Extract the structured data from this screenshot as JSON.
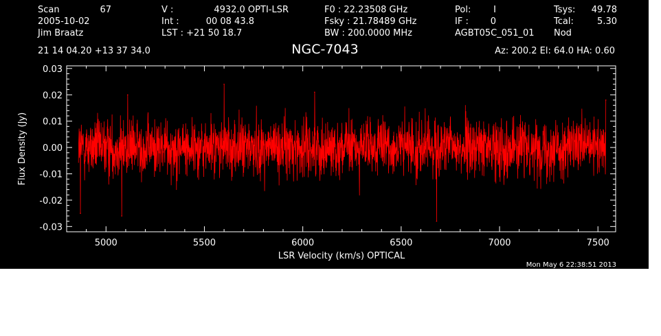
{
  "header": {
    "col1": [
      "Scan",
      "2005-10-02",
      "Jim Braatz"
    ],
    "scan_number": "67",
    "col2": [
      "V   :",
      "Int  :",
      "LST : +21 50 18.7"
    ],
    "col2_values": [
      "4932.0 OPTI-LSR",
      "00 08 43.8"
    ],
    "col3": [
      "F0   :  22.23508 GHz",
      "Fsky :  21.78489 GHz",
      "BW   : 200.0000 MHz"
    ],
    "col4": [
      "Pol:",
      "IF :",
      "AGBT05C_051_01"
    ],
    "col4_values": [
      "I",
      "0"
    ],
    "col5": [
      "Tsys:",
      "Tcal:",
      "Nod"
    ],
    "col5_values": [
      "49.78",
      "5.30"
    ],
    "coords": "21 14 04.20  +13 37 34.0",
    "source": "NGC-7043",
    "pointing": "Az: 200.2  El:  64.0  HA:  0.60",
    "timestamp": "Mon May  6 22:38:51 2013"
  },
  "chart_data": {
    "type": "line",
    "title": "NGC-7043",
    "xlabel": "LSR Velocity (km/s) OPTICAL",
    "ylabel": "Flux Density (Jy)",
    "xlim": [
      4800,
      7590
    ],
    "ylim": [
      -0.032,
      0.031
    ],
    "x_ticks": [
      5000,
      5500,
      6000,
      6500,
      7000,
      7500
    ],
    "y_ticks": [
      -0.03,
      -0.02,
      -0.01,
      0.0,
      0.01,
      0.02,
      0.03
    ],
    "x_tick_labels": [
      "5000",
      "5500",
      "6000",
      "6500",
      "7000",
      "7500"
    ],
    "y_tick_labels": [
      "-0.03",
      "-0.02",
      "-0.01",
      "0.00",
      "0.01",
      "0.02",
      "0.03"
    ],
    "series": [
      {
        "color": "#ff0000",
        "x_range": [
          4860,
          7540
        ],
        "mean": 0.0,
        "rms": 0.006,
        "peaks": [
          {
            "x": 4870,
            "y": -0.025
          },
          {
            "x": 5080,
            "y": -0.026
          },
          {
            "x": 5110,
            "y": 0.02
          },
          {
            "x": 5600,
            "y": 0.024
          },
          {
            "x": 6060,
            "y": 0.021
          },
          {
            "x": 6680,
            "y": -0.028
          },
          {
            "x": 7540,
            "y": 0.018
          }
        ]
      }
    ],
    "grid": false,
    "legend": "none"
  }
}
